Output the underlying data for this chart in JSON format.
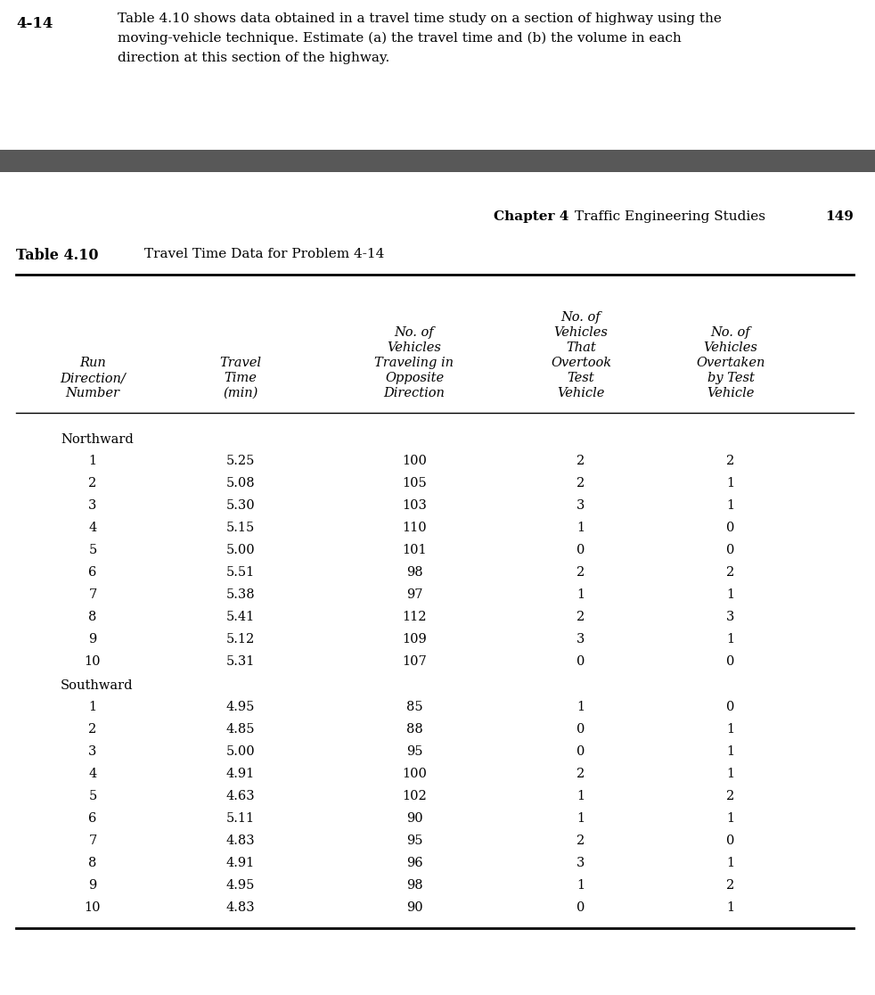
{
  "problem_number": "4-14",
  "problem_text_line1": "Table 4.10 shows data obtained in a travel time study on a section of highway using the",
  "problem_text_line2": "moving-vehicle technique. Estimate (a) the travel time and (b) the volume in each",
  "problem_text_line3": "direction at this section of the highway.",
  "chapter_header": "Chapter 4",
  "chapter_subheader": "Traffic Engineering Studies",
  "page_number": "149",
  "table_label": "Table 4.10",
  "table_title": "Travel Time Data for Problem 4-14",
  "northward_rows": [
    [
      "1",
      "5.25",
      "100",
      "2",
      "2"
    ],
    [
      "2",
      "5.08",
      "105",
      "2",
      "1"
    ],
    [
      "3",
      "5.30",
      "103",
      "3",
      "1"
    ],
    [
      "4",
      "5.15",
      "110",
      "1",
      "0"
    ],
    [
      "5",
      "5.00",
      "101",
      "0",
      "0"
    ],
    [
      "6",
      "5.51",
      "98",
      "2",
      "2"
    ],
    [
      "7",
      "5.38",
      "97",
      "1",
      "1"
    ],
    [
      "8",
      "5.41",
      "112",
      "2",
      "3"
    ],
    [
      "9",
      "5.12",
      "109",
      "3",
      "1"
    ],
    [
      "10",
      "5.31",
      "107",
      "0",
      "0"
    ]
  ],
  "southward_rows": [
    [
      "1",
      "4.95",
      "85",
      "1",
      "0"
    ],
    [
      "2",
      "4.85",
      "88",
      "0",
      "1"
    ],
    [
      "3",
      "5.00",
      "95",
      "0",
      "1"
    ],
    [
      "4",
      "4.91",
      "100",
      "2",
      "1"
    ],
    [
      "5",
      "4.63",
      "102",
      "1",
      "2"
    ],
    [
      "6",
      "5.11",
      "90",
      "1",
      "1"
    ],
    [
      "7",
      "4.83",
      "95",
      "2",
      "0"
    ],
    [
      "8",
      "4.91",
      "96",
      "3",
      "1"
    ],
    [
      "9",
      "4.95",
      "98",
      "1",
      "2"
    ],
    [
      "10",
      "4.83",
      "90",
      "0",
      "1"
    ]
  ],
  "background_color": "#ffffff",
  "header_bar_color": "#585858",
  "text_color": "#000000",
  "font_size_body": 10.5,
  "font_size_header_italic": 10.5,
  "font_size_chapter": 10.5,
  "font_size_problem": 11.5,
  "font_size_table_label": 11.5
}
